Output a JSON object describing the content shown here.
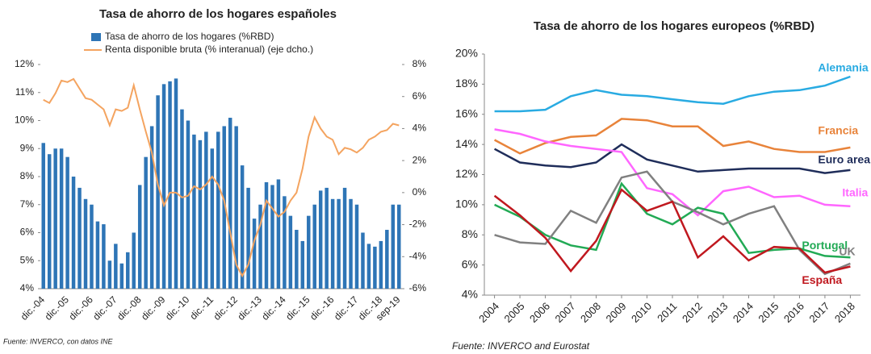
{
  "chart_data": [
    {
      "type": "bar",
      "title": "Tasa de ahorro de los hogares españoles",
      "source": "Fuente: INVERCO, con datos INE",
      "categories": [
        "dic.-04",
        null,
        null,
        null,
        "dic.-05",
        null,
        null,
        null,
        "dic.-06",
        null,
        null,
        null,
        "dic.-07",
        null,
        null,
        null,
        "dic.-08",
        null,
        null,
        null,
        "dic.-09",
        null,
        null,
        null,
        "dic.-10",
        null,
        null,
        null,
        "dic.-11",
        null,
        null,
        null,
        "dic.-12",
        null,
        null,
        null,
        "dic.-13",
        null,
        null,
        null,
        "dic.-14",
        null,
        null,
        null,
        "dic.-15",
        null,
        null,
        null,
        "dic.-16",
        null,
        null,
        null,
        "dic.-17",
        null,
        null,
        null,
        "dic.-18",
        null,
        null,
        "sep-19"
      ],
      "series": [
        {
          "name": "Tasa de ahorro de los hogares (%RBD)",
          "color": "#2e75b6",
          "values": [
            9.2,
            8.8,
            9.0,
            9.0,
            8.7,
            8.0,
            7.6,
            7.2,
            7.0,
            6.4,
            6.3,
            5.0,
            5.6,
            4.9,
            5.3,
            6.0,
            7.7,
            8.7,
            9.8,
            10.9,
            11.3,
            11.4,
            11.5,
            10.4,
            10.0,
            9.5,
            9.3,
            9.6,
            9.0,
            9.6,
            9.8,
            10.1,
            9.8,
            8.4,
            7.6,
            6.5,
            7.0,
            7.8,
            7.7,
            7.9,
            7.3,
            6.6,
            6.1,
            5.7,
            6.6,
            7.0,
            7.5,
            7.6,
            7.2,
            7.2,
            7.6,
            7.2,
            7.0,
            6.0,
            5.6,
            5.5,
            5.7,
            6.1,
            7.0,
            7.0
          ]
        },
        {
          "name": "Renta disponible bruta (% interanual) (eje dcho.)",
          "color": "#f4a460",
          "type": "line",
          "axis": "y2",
          "values": [
            5.8,
            5.6,
            6.2,
            7.0,
            6.9,
            7.1,
            6.5,
            5.9,
            5.8,
            5.5,
            5.2,
            4.2,
            5.2,
            5.1,
            5.3,
            6.7,
            5.2,
            3.8,
            2.5,
            0.5,
            -0.8,
            0.0,
            0.0,
            -0.3,
            -0.2,
            0.4,
            0.2,
            0.5,
            1.0,
            0.5,
            -0.5,
            -2.5,
            -4.5,
            -5.2,
            -4.5,
            -3.0,
            -2.0,
            -0.5,
            -1.0,
            -1.5,
            -1.2,
            -0.5,
            0.0,
            1.5,
            3.5,
            4.7,
            4.0,
            3.5,
            3.3,
            2.4,
            2.8,
            2.7,
            2.5,
            2.8,
            3.3,
            3.5,
            3.8,
            3.9,
            4.3,
            4.2
          ]
        }
      ],
      "ylim": [
        4,
        12
      ],
      "yticks": [
        {
          "value": 4,
          "label": "4%"
        },
        {
          "value": 5,
          "label": "5%"
        },
        {
          "value": 6,
          "label": "6%"
        },
        {
          "value": 7,
          "label": "7%"
        },
        {
          "value": 8,
          "label": "8%"
        },
        {
          "value": 9,
          "label": "9%"
        },
        {
          "value": 10,
          "label": "10%"
        },
        {
          "value": 11,
          "label": "11%"
        },
        {
          "value": 12,
          "label": "12%"
        }
      ],
      "y2lim": [
        -6,
        8
      ],
      "y2ticks": [
        {
          "value": -6,
          "label": "-6%"
        },
        {
          "value": -4,
          "label": "-4%"
        },
        {
          "value": -2,
          "label": "-2%"
        },
        {
          "value": 0,
          "label": "0%"
        },
        {
          "value": 2,
          "label": "2%"
        },
        {
          "value": 4,
          "label": "4%"
        },
        {
          "value": 6,
          "label": "6%"
        },
        {
          "value": 8,
          "label": "8%"
        }
      ],
      "grid": false
    },
    {
      "type": "line",
      "title": "Tasa de ahorro de los hogares europeos (%RBD)",
      "source": "Fuente: INVERCO and Eurostat",
      "x": [
        2004,
        2005,
        2006,
        2007,
        2008,
        2009,
        2010,
        2011,
        2012,
        2013,
        2014,
        2015,
        2016,
        2017,
        2018
      ],
      "xlim": [
        2003.6,
        2018.4
      ],
      "xticks": [
        2004,
        2005,
        2006,
        2007,
        2008,
        2009,
        2010,
        2011,
        2012,
        2013,
        2014,
        2015,
        2016,
        2017,
        2018
      ],
      "series": [
        {
          "name": "Alemania",
          "color": "#29abe2",
          "values": [
            16.2,
            16.2,
            16.3,
            17.2,
            17.6,
            17.3,
            17.2,
            17.0,
            16.8,
            16.7,
            17.2,
            17.5,
            17.6,
            17.9,
            18.5
          ]
        },
        {
          "name": "Francia",
          "color": "#e8833a",
          "values": [
            14.3,
            13.4,
            14.1,
            14.5,
            14.6,
            15.7,
            15.6,
            15.2,
            15.2,
            13.9,
            14.2,
            13.7,
            13.5,
            13.5,
            13.8
          ]
        },
        {
          "name": "Euro area",
          "color": "#1f2d5a",
          "values": [
            13.7,
            12.8,
            12.6,
            12.5,
            12.8,
            14.0,
            13.0,
            12.6,
            12.2,
            12.3,
            12.4,
            12.4,
            12.4,
            12.1,
            12.3
          ]
        },
        {
          "name": "Italia",
          "color": "#ff66ff",
          "values": [
            15.0,
            14.7,
            14.2,
            13.9,
            13.7,
            13.5,
            11.1,
            10.7,
            9.3,
            10.9,
            11.2,
            10.5,
            10.6,
            10.0,
            9.9
          ]
        },
        {
          "name": "Portugal",
          "color": "#22aa55",
          "values": [
            10.0,
            9.2,
            8.0,
            7.3,
            7.0,
            11.4,
            9.4,
            8.7,
            9.8,
            9.4,
            6.8,
            7.0,
            7.1,
            6.6,
            6.5
          ]
        },
        {
          "name": "UK",
          "color": "#808080",
          "values": [
            8.0,
            7.5,
            7.4,
            9.6,
            8.8,
            11.8,
            12.2,
            10.2,
            9.5,
            8.7,
            9.4,
            9.9,
            7.0,
            5.4,
            6.1
          ]
        },
        {
          "name": "España",
          "color": "#c0181f",
          "values": [
            10.6,
            9.3,
            7.8,
            5.6,
            7.6,
            11.0,
            9.6,
            10.2,
            6.5,
            7.9,
            6.3,
            7.2,
            7.1,
            5.5,
            5.9
          ]
        }
      ],
      "ylim": [
        4,
        20
      ],
      "yticks": [
        {
          "value": 4,
          "label": "4%"
        },
        {
          "value": 6,
          "label": "6%"
        },
        {
          "value": 8,
          "label": "8%"
        },
        {
          "value": 10,
          "label": "10%"
        },
        {
          "value": 12,
          "label": "12%"
        },
        {
          "value": 14,
          "label": "14%"
        },
        {
          "value": 16,
          "label": "16%"
        },
        {
          "value": 18,
          "label": "18%"
        },
        {
          "value": 20,
          "label": "20%"
        }
      ],
      "grid": false
    }
  ]
}
